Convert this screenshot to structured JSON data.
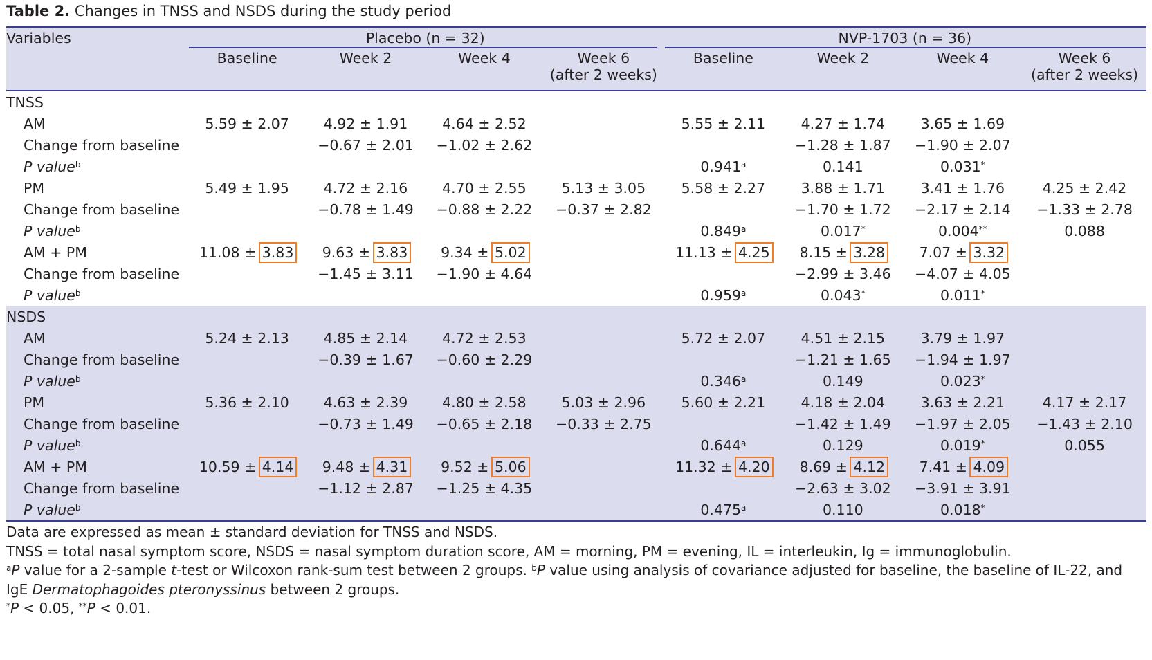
{
  "caption": {
    "label": "Table 2.",
    "text": " Changes in TNSS and NSDS during the study period"
  },
  "header": {
    "variables": "Variables",
    "groups": [
      "Placebo (n = 32)",
      "NVP-1703 (n = 36)"
    ],
    "cols": [
      "Baseline",
      "Week 2",
      "Week 4",
      "Week 6",
      "Baseline",
      "Week 2",
      "Week 4",
      "Week 6"
    ],
    "week6_sub": "(after 2 weeks)"
  },
  "sections": [
    {
      "name": "TNSS",
      "rows": [
        {
          "label": "AM",
          "type": "val",
          "cells": [
            "5.59 ± 2.07",
            "4.92 ± 1.91",
            "4.64 ± 2.52",
            "",
            "5.55 ± 2.11",
            "4.27 ± 1.74",
            "3.65 ± 1.69",
            ""
          ]
        },
        {
          "label": "Change from baseline",
          "type": "val",
          "cells": [
            "",
            "−0.67 ± 2.01",
            "−1.02 ± 2.62",
            "",
            "",
            "−1.28 ± 1.87",
            "−1.90 ± 2.07",
            ""
          ]
        },
        {
          "label": "P value",
          "type": "p",
          "cells": [
            "",
            "",
            "",
            "",
            "0.941",
            "0.141",
            "0.031",
            ""
          ],
          "sups": [
            "",
            "",
            "",
            "",
            "a",
            "",
            "*",
            ""
          ]
        },
        {
          "label": "PM",
          "type": "val",
          "cells": [
            "5.49 ± 1.95",
            "4.72 ± 2.16",
            "4.70 ± 2.55",
            "5.13 ± 3.05",
            "5.58 ± 2.27",
            "3.88 ± 1.71",
            "3.41 ± 1.76",
            "4.25 ± 2.42"
          ]
        },
        {
          "label": "Change from baseline",
          "type": "val",
          "cells": [
            "",
            "−0.78 ± 1.49",
            "−0.88 ± 2.22",
            "−0.37 ± 2.82",
            "",
            "−1.70 ± 1.72",
            "−2.17 ± 2.14",
            "−1.33 ± 2.78"
          ]
        },
        {
          "label": "P value",
          "type": "p",
          "cells": [
            "",
            "",
            "",
            "",
            "0.849",
            "0.017",
            "0.004",
            "0.088"
          ],
          "sups": [
            "",
            "",
            "",
            "",
            "a",
            "*",
            "**",
            ""
          ]
        },
        {
          "label": "AM + PM",
          "type": "box",
          "means": [
            "11.08",
            "9.63",
            "9.34",
            "",
            "11.13",
            "8.15",
            "7.07",
            ""
          ],
          "sds": [
            "3.83",
            "3.83",
            "5.02",
            "",
            "4.25",
            "3.28",
            "3.32",
            ""
          ]
        },
        {
          "label": "Change from baseline",
          "type": "val",
          "cells": [
            "",
            "−1.45 ± 3.11",
            "−1.90 ± 4.64",
            "",
            "",
            "−2.99 ± 3.46",
            "−4.07 ± 4.05",
            ""
          ]
        },
        {
          "label": "P value",
          "type": "p",
          "cells": [
            "",
            "",
            "",
            "",
            "0.959",
            "0.043",
            "0.011",
            ""
          ],
          "sups": [
            "",
            "",
            "",
            "",
            "a",
            "*",
            "*",
            ""
          ]
        }
      ]
    },
    {
      "name": "NSDS",
      "rows": [
        {
          "label": "AM",
          "type": "val",
          "cells": [
            "5.24 ± 2.13",
            "4.85 ± 2.14",
            "4.72 ± 2.53",
            "",
            "5.72 ± 2.07",
            "4.51 ± 2.15",
            "3.79 ± 1.97",
            ""
          ]
        },
        {
          "label": "Change from baseline",
          "type": "val",
          "cells": [
            "",
            "−0.39 ± 1.67",
            "−0.60 ± 2.29",
            "",
            "",
            "−1.21 ± 1.65",
            "−1.94 ± 1.97",
            ""
          ]
        },
        {
          "label": "P value",
          "type": "p",
          "cells": [
            "",
            "",
            "",
            "",
            "0.346",
            "0.149",
            "0.023",
            ""
          ],
          "sups": [
            "",
            "",
            "",
            "",
            "a",
            "",
            "*",
            ""
          ]
        },
        {
          "label": "PM",
          "type": "val",
          "cells": [
            "5.36 ± 2.10",
            "4.63 ± 2.39",
            "4.80 ± 2.58",
            "5.03 ± 2.96",
            "5.60 ± 2.21",
            "4.18 ± 2.04",
            "3.63 ± 2.21",
            "4.17 ± 2.17"
          ]
        },
        {
          "label": "Change from baseline",
          "type": "val",
          "cells": [
            "",
            "−0.73 ± 1.49",
            "−0.65 ± 2.18",
            "−0.33 ± 2.75",
            "",
            "−1.42 ± 1.49",
            "−1.97 ± 2.05",
            "−1.43 ± 2.10"
          ]
        },
        {
          "label": "P value",
          "type": "p",
          "cells": [
            "",
            "",
            "",
            "",
            "0.644",
            "0.129",
            "0.019",
            "0.055"
          ],
          "sups": [
            "",
            "",
            "",
            "",
            "a",
            "",
            "*",
            ""
          ]
        },
        {
          "label": "AM + PM",
          "type": "box",
          "means": [
            "10.59",
            "9.48",
            "9.52",
            "",
            "11.32",
            "8.69",
            "7.41",
            ""
          ],
          "sds": [
            "4.14",
            "4.31",
            "5.06",
            "",
            "4.20",
            "4.12",
            "4.09",
            ""
          ]
        },
        {
          "label": "Change from baseline",
          "type": "val",
          "cells": [
            "",
            "−1.12 ± 2.87",
            "−1.25 ± 4.35",
            "",
            "",
            "−2.63 ± 3.02",
            "−3.91 ± 3.91",
            ""
          ]
        },
        {
          "label": "P value",
          "type": "p",
          "cells": [
            "",
            "",
            "",
            "",
            "0.475",
            "0.110",
            "0.018",
            ""
          ],
          "sups": [
            "",
            "",
            "",
            "",
            "a",
            "",
            "*",
            ""
          ]
        }
      ]
    }
  ],
  "notes": {
    "line1": "Data are expressed as mean ± standard deviation for TNSS and NSDS.",
    "line2": "TNSS = total nasal symptom score, NSDS = nasal symptom duration score, AM = morning, PM = evening, IL = interleukin, Ig = immunoglobulin.",
    "line3_a_mark": "a",
    "line3_a_p": "P",
    "line3_a_text1": " value for a 2-sample ",
    "line3_a_t": "t",
    "line3_a_text2": "-test or Wilcoxon rank-sum test between 2 groups. ",
    "line3_b_mark": "b",
    "line3_b_p": "P",
    "line3_b_text": " value using analysis of covariance adjusted for baseline, the baseline of IL-22, and",
    "line4_pre": "IgE ",
    "line4_species": "Dermatophagoides pteronyssinus",
    "line4_post": " between 2 groups.",
    "line5_s1": "*",
    "line5_p1": "P",
    "line5_t1": " < 0.05, ",
    "line5_s2": "**",
    "line5_p2": "P",
    "line5_t2": " < 0.01."
  },
  "colors": {
    "rule": "#3a3d94",
    "shade": "#dcdcef",
    "highlight_box": "#f07c2a"
  }
}
